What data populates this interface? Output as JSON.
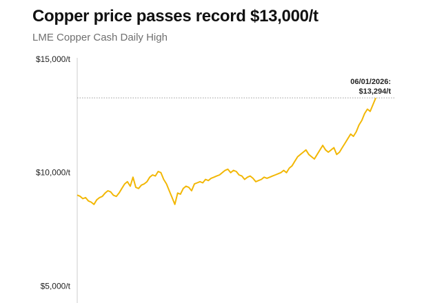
{
  "header": {
    "title": "Copper price passes record $13,000/t",
    "subtitle": "LME Copper Cash Daily High"
  },
  "colors": {
    "line": "#f2b705",
    "axis": "#cccccc",
    "reference": "#999999"
  },
  "chart_data": {
    "type": "line",
    "title": "Copper price passes record $13,000/t",
    "subtitle": "LME Copper Cash Daily High",
    "xlabel": "",
    "ylabel": "",
    "ylim": [
      0,
      15000
    ],
    "yticks": [
      {
        "value": 5000,
        "label": "$5,000/t"
      },
      {
        "value": 10000,
        "label": "$10,000/t"
      },
      {
        "value": 15000,
        "label": "$15,000/t"
      }
    ],
    "grid": false,
    "legend": "none",
    "series": [
      {
        "values": [
          9010,
          8960,
          8850,
          8900,
          8750,
          8700,
          8600,
          8800,
          8900,
          8950,
          9100,
          9200,
          9150,
          9000,
          8950,
          9100,
          9300,
          9500,
          9600,
          9400,
          9800,
          9350,
          9300,
          9450,
          9500,
          9600,
          9800,
          9900,
          9850,
          10050,
          10000,
          9700,
          9500,
          9200,
          8900,
          8600,
          9100,
          9050,
          9300,
          9400,
          9350,
          9200,
          9500,
          9550,
          9600,
          9550,
          9700,
          9650,
          9750,
          9800,
          9850,
          9900,
          10000,
          10100,
          10150,
          10000,
          10100,
          10050,
          9900,
          9850,
          9700,
          9800,
          9850,
          9750,
          9600,
          9650,
          9700,
          9800,
          9750,
          9800,
          9850,
          9900,
          9950,
          10000,
          10100,
          10000,
          10200,
          10300,
          10500,
          10700,
          10800,
          10900,
          11000,
          10800,
          10700,
          10600,
          10800,
          11000,
          11200,
          11000,
          10900,
          11000,
          11100,
          10800,
          10900,
          11100,
          11300,
          11500,
          11700,
          11600,
          11800,
          12100,
          12300,
          12600,
          12800,
          12700,
          13000,
          13294
        ]
      }
    ],
    "annotation": {
      "lines": [
        "06/01/2026:",
        "$13,294/t"
      ],
      "value": 13294
    }
  }
}
